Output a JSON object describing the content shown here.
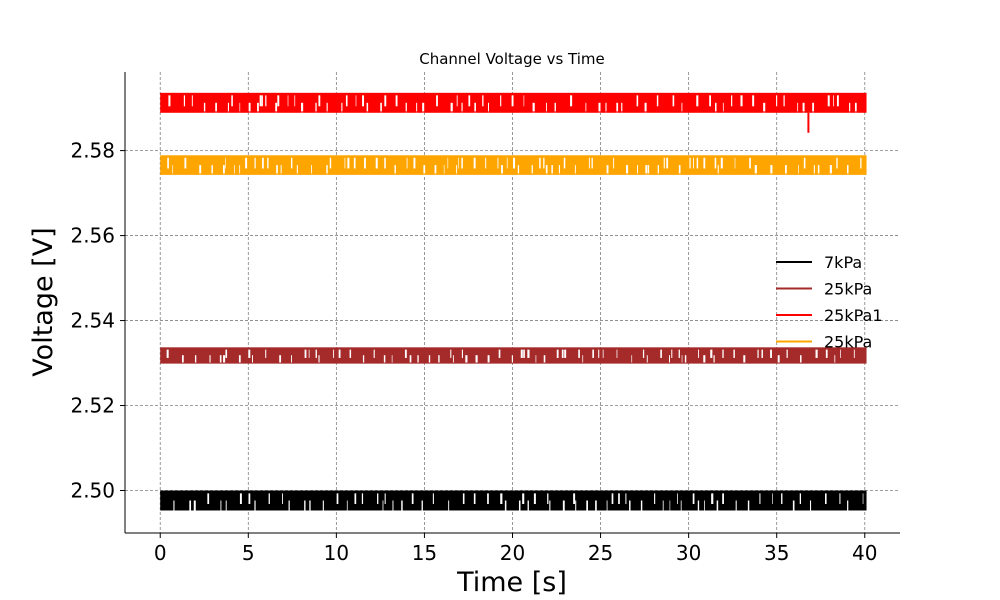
{
  "chart_data": {
    "type": "line",
    "title": "Channel Voltage vs Time",
    "xlabel": "Time [s]",
    "ylabel": "Voltage [V]",
    "xlim": [
      -2,
      42
    ],
    "ylim": [
      2.49,
      2.5985
    ],
    "xticks": [
      0,
      5,
      10,
      15,
      20,
      25,
      30,
      35,
      40
    ],
    "xtick_labels": [
      "0",
      "5",
      "10",
      "15",
      "20",
      "25",
      "30",
      "35",
      "40"
    ],
    "yticks": [
      2.5,
      2.52,
      2.54,
      2.56,
      2.58
    ],
    "ytick_labels": [
      "2.50",
      "2.52",
      "2.54",
      "2.56",
      "2.58"
    ],
    "grid": true,
    "legend_position": "center-right",
    "series": [
      {
        "name": "7kPa",
        "color": "#000000",
        "x_range": [
          0,
          40.1
        ],
        "levels": [
          2.4995,
          2.4995
        ],
        "noise_band": [
          2.4953,
          2.5
        ],
        "description": "quantized noise between two levels"
      },
      {
        "name": "25kPa",
        "color": "#a52a2a",
        "x_range": [
          0,
          40.1
        ],
        "levels": [
          2.5333,
          2.53
        ],
        "noise_band": [
          2.53,
          2.5337
        ]
      },
      {
        "name": "25kPa1",
        "color": "#ff0000",
        "x_range": [
          0,
          40.1
        ],
        "levels": [
          2.5934,
          2.5891
        ],
        "noise_band": [
          2.5889,
          2.5936
        ],
        "spike": {
          "x": 36.8,
          "y": 2.5842
        }
      },
      {
        "name": "25kPa",
        "color": "#ffa500",
        "x_range": [
          0,
          40.1
        ],
        "levels": [
          2.5785,
          2.5745
        ],
        "noise_band": [
          2.5743,
          2.5789
        ]
      }
    ]
  }
}
